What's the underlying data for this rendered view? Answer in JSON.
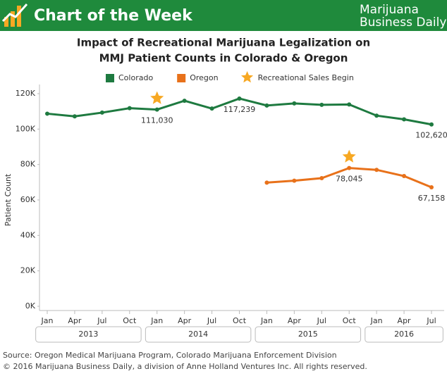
{
  "header": {
    "title": "Chart of the Week",
    "logo_line1": "Marijuana",
    "logo_line2": "Business Daily"
  },
  "chart_data": {
    "type": "line",
    "title": "Impact of Recreational Marijuana Legalization on",
    "subtitle": "MMJ Patient Counts in Colorado & Oregon",
    "y_label": "Patient Count",
    "categories": [
      "Jan",
      "Apr",
      "Jul",
      "Oct",
      "Jan",
      "Apr",
      "Jul",
      "Oct",
      "Jan",
      "Apr",
      "Jul",
      "Oct",
      "Jan",
      "Apr",
      "Jul"
    ],
    "year_groups": [
      {
        "name": "2013",
        "start": 0,
        "end": 3
      },
      {
        "name": "2014",
        "start": 4,
        "end": 7
      },
      {
        "name": "2015",
        "start": 8,
        "end": 11
      },
      {
        "name": "2016",
        "start": 12,
        "end": 14
      }
    ],
    "series": [
      {
        "name": "Colorado",
        "color": "#1e7a40",
        "values": [
          108700,
          107200,
          109300,
          111800,
          111030,
          116000,
          111600,
          117239,
          113300,
          114500,
          113700,
          113900,
          107600,
          105500,
          102620
        ],
        "value_labels": [
          null,
          null,
          null,
          null,
          "111,030",
          null,
          null,
          "117,239",
          null,
          null,
          null,
          null,
          null,
          null,
          "102,620"
        ]
      },
      {
        "name": "Oregon",
        "color": "#e8711a",
        "values": [
          null,
          null,
          null,
          null,
          null,
          null,
          null,
          null,
          69800,
          70900,
          72300,
          78045,
          77000,
          73500,
          67158
        ],
        "value_labels": [
          null,
          null,
          null,
          null,
          null,
          null,
          null,
          null,
          null,
          null,
          null,
          "78,045",
          null,
          null,
          "67,158"
        ]
      }
    ],
    "markers": {
      "name": "Recreational Sales Begin",
      "color": "#f7a823",
      "points": [
        {
          "series": 0,
          "index": 4
        },
        {
          "series": 1,
          "index": 11
        }
      ]
    },
    "ylim": [
      0,
      120000
    ],
    "yticks": [
      {
        "value": 0,
        "label": "0K"
      },
      {
        "value": 20000,
        "label": "20K"
      },
      {
        "value": 40000,
        "label": "40K"
      },
      {
        "value": 60000,
        "label": "60K"
      },
      {
        "value": 80000,
        "label": "80K"
      },
      {
        "value": 100000,
        "label": "100K"
      },
      {
        "value": 120000,
        "label": "120K"
      }
    ],
    "source": "Source: Oregon Medical Marijuana Program, Colorado Marijuana Enforcement Division",
    "copyright": "© 2016 Marijuana Business Daily, a division of Anne Holland Ventures Inc. All rights reserved."
  }
}
